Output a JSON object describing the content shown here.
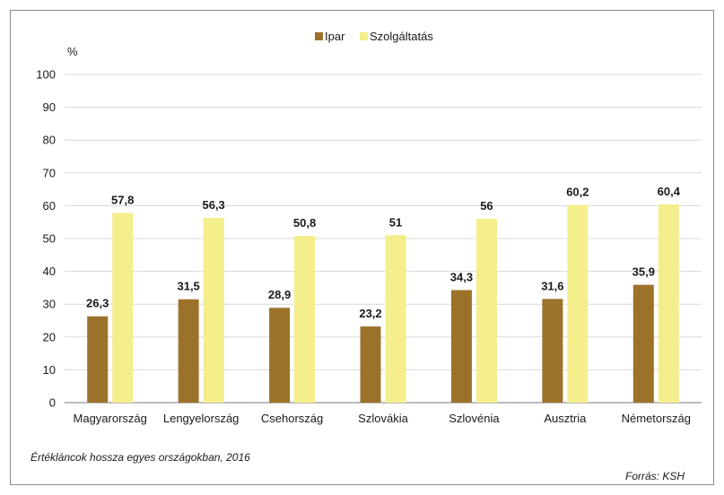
{
  "chart_data": {
    "type": "bar",
    "ylabel": "%",
    "ylim": [
      0,
      100
    ],
    "yticks": [
      "0",
      "10",
      "20",
      "30",
      "40",
      "50",
      "60",
      "70",
      "80",
      "90",
      "100"
    ],
    "grid": true,
    "legend_position": "top-center",
    "categories": [
      "Magyarország",
      "Lengyelország",
      "Csehország",
      "Szlovákia",
      "Szlovénia",
      "Ausztria",
      "Németország"
    ],
    "series": [
      {
        "name": "Ipar",
        "color": "#9c722b",
        "values": [
          26.3,
          31.5,
          28.9,
          23.2,
          34.3,
          31.6,
          35.9
        ],
        "labels": [
          "26,3",
          "31,5",
          "28,9",
          "23,2",
          "34,3",
          "31,6",
          "35,9"
        ]
      },
      {
        "name": "Szolgáltatás",
        "color": "#f4ee8c",
        "values": [
          57.8,
          56.3,
          50.8,
          51,
          56,
          60.2,
          60.4
        ],
        "labels": [
          "57,8",
          "56,3",
          "50,8",
          "51",
          "56",
          "60,2",
          "60,4"
        ]
      }
    ]
  },
  "caption": "Értékláncok hossza egyes országokban, 2016",
  "source": "Forrás: KSH"
}
